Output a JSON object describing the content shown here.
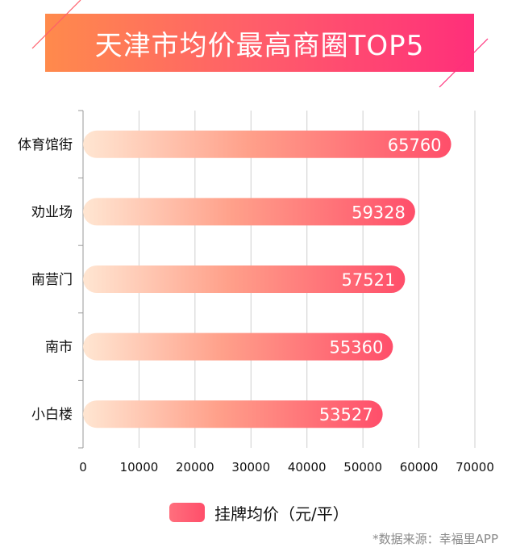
{
  "header": {
    "title": "天津市均价最高商圈TOP5",
    "colors": {
      "start": "#ff8a4c",
      "end": "#ff2f7a"
    }
  },
  "chart_data": {
    "type": "bar",
    "orientation": "horizontal",
    "title": "天津市均价最高商圈TOP5",
    "categories": [
      "体育馆街",
      "劝业场",
      "南营门",
      "南市",
      "小白楼"
    ],
    "series": [
      {
        "name": "挂牌均价（元/平）",
        "values": [
          65760,
          59328,
          57521,
          55360,
          53527
        ]
      }
    ],
    "xlim": [
      0,
      70000
    ],
    "xticks": [
      0,
      10000,
      20000,
      30000,
      40000,
      50000,
      60000,
      70000
    ],
    "xlabel": "",
    "ylabel": "",
    "grid": true,
    "legend": "bottom-center",
    "bar_gradient": [
      "#ffe3cf",
      "#ff4e6a"
    ]
  },
  "legend": {
    "label": "挂牌均价（元/平）"
  },
  "source": {
    "text": "*数据来源：幸福里APP"
  }
}
